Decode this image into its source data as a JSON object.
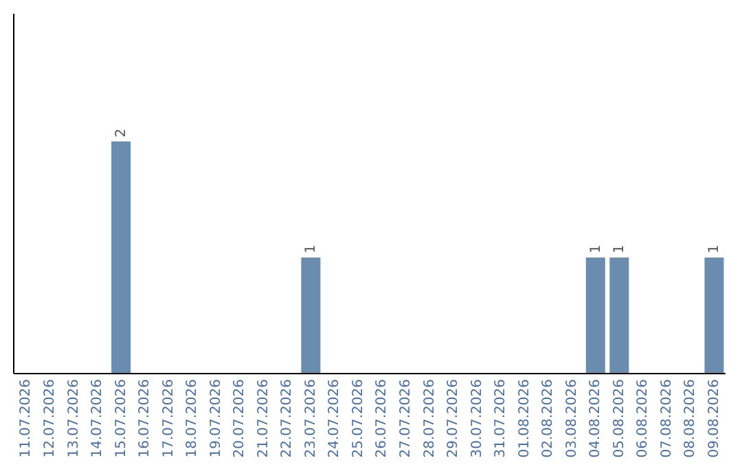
{
  "chart_data": {
    "type": "bar",
    "categories": [
      "11.07.2026",
      "12.07.2026",
      "13.07.2026",
      "14.07.2026",
      "15.07.2026",
      "16.07.2026",
      "17.07.2026",
      "18.07.2026",
      "19.07.2026",
      "20.07.2026",
      "21.07.2026",
      "22.07.2026",
      "23.07.2026",
      "24.07.2026",
      "25.07.2026",
      "26.07.2026",
      "27.07.2026",
      "28.07.2026",
      "29.07.2026",
      "30.07.2026",
      "31.07.2026",
      "01.08.2026",
      "02.08.2026",
      "03.08.2026",
      "04.08.2026",
      "05.08.2026",
      "06.08.2026",
      "07.08.2026",
      "08.08.2026",
      "09.08.2026"
    ],
    "values": [
      0,
      0,
      0,
      0,
      2,
      0,
      0,
      0,
      0,
      0,
      0,
      0,
      1,
      0,
      0,
      0,
      0,
      0,
      0,
      0,
      0,
      0,
      0,
      0,
      1,
      1,
      0,
      0,
      0,
      1
    ],
    "value_labels": [
      null,
      null,
      null,
      null,
      "2",
      null,
      null,
      null,
      null,
      null,
      null,
      null,
      "1",
      null,
      null,
      null,
      null,
      null,
      null,
      null,
      null,
      null,
      null,
      null,
      "1",
      "1",
      null,
      null,
      null,
      "1"
    ],
    "color": "#6a8caf",
    "grid": false,
    "legend": false,
    "tick_labels": "x"
  }
}
